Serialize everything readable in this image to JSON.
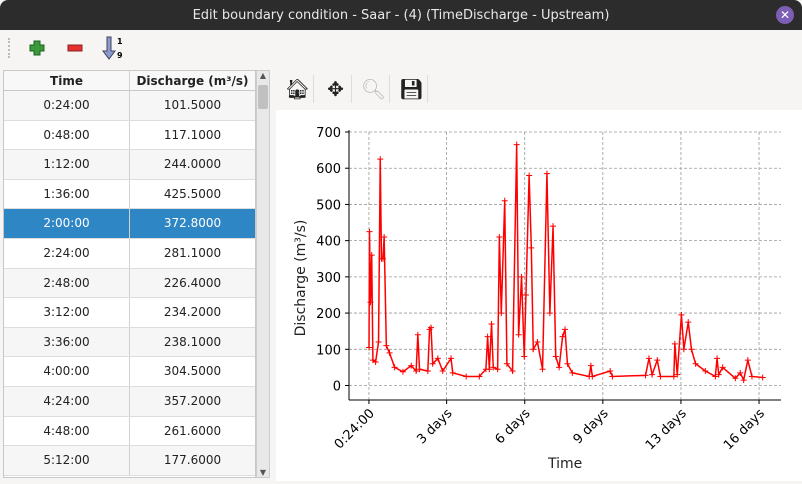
{
  "window": {
    "title": "Edit boundary condition - Saar -  (4) (TimeDischarge - Upstream)",
    "close_icon": "close-icon"
  },
  "toolbar": {
    "buttons": [
      {
        "icon": "add-row-icon"
      },
      {
        "icon": "remove-row-icon"
      },
      {
        "icon": "sort-ascending-icon",
        "glyph": "1 9"
      }
    ]
  },
  "table": {
    "columns": [
      "Time",
      "Discharge (m³/s)"
    ],
    "selected_index": 4,
    "rows": [
      [
        "0:24:00",
        "101.5000"
      ],
      [
        "0:48:00",
        "117.1000"
      ],
      [
        "1:12:00",
        "244.0000"
      ],
      [
        "1:36:00",
        "425.5000"
      ],
      [
        "2:00:00",
        "372.8000"
      ],
      [
        "2:24:00",
        "281.1000"
      ],
      [
        "2:48:00",
        "226.4000"
      ],
      [
        "3:12:00",
        "234.2000"
      ],
      [
        "3:36:00",
        "238.1000"
      ],
      [
        "4:00:00",
        "304.5000"
      ],
      [
        "4:24:00",
        "357.2000"
      ],
      [
        "4:48:00",
        "261.6000"
      ],
      [
        "5:12:00",
        "177.6000"
      ]
    ]
  },
  "chart_toolbar": {
    "buttons": [
      "home-icon",
      "pan-icon",
      "zoom-icon",
      "save-icon"
    ]
  },
  "chart_data": {
    "type": "line",
    "color": "#ff0000",
    "marker": "+",
    "grid": true,
    "xlabel": "Time",
    "ylabel": "Discharge (m³/s)",
    "xunit": "days",
    "xlim": [
      -0.8,
      16.9
    ],
    "ylim": [
      -40,
      700
    ],
    "xticks": [
      0.0167,
      3.2,
      6.4,
      9.6,
      12.8,
      16.0
    ],
    "xtick_labels": [
      "0:24:00",
      "3 days",
      "6 days",
      "9 days",
      "13 days",
      "16 days"
    ],
    "yticks": [
      0,
      100,
      200,
      300,
      400,
      500,
      600,
      700
    ],
    "x": [
      0.02,
      0.04,
      0.08,
      0.13,
      0.18,
      0.29,
      0.41,
      0.48,
      0.53,
      0.59,
      0.64,
      0.73,
      0.86,
      1.07,
      1.41,
      1.75,
      1.95,
      2.02,
      2.09,
      2.43,
      2.5,
      2.56,
      2.63,
      2.84,
      3.04,
      3.38,
      3.45,
      4.0,
      4.54,
      4.81,
      4.88,
      4.95,
      5.04,
      5.11,
      5.29,
      5.36,
      5.44,
      5.58,
      5.67,
      5.9,
      6.07,
      6.15,
      6.27,
      6.38,
      6.45,
      6.58,
      6.67,
      6.75,
      6.92,
      7.13,
      7.31,
      7.43,
      7.56,
      7.67,
      7.81,
      7.95,
      8.05,
      8.15,
      8.35,
      9.04,
      9.11,
      9.17,
      9.9,
      9.99,
      11.35,
      11.49,
      11.62,
      11.83,
      11.96,
      12.51,
      12.55,
      12.65,
      12.82,
      12.92,
      13.1,
      13.23,
      13.4,
      13.8,
      14.21,
      14.28,
      14.35,
      14.51,
      15.03,
      15.23,
      15.37,
      15.54,
      15.71,
      16.15
    ],
    "y": [
      105,
      425,
      230,
      360,
      70,
      65,
      120,
      625,
      350,
      350,
      410,
      110,
      90,
      50,
      38,
      55,
      40,
      140,
      45,
      40,
      155,
      160,
      60,
      75,
      40,
      75,
      35,
      25,
      25,
      45,
      135,
      45,
      170,
      50,
      45,
      410,
      200,
      510,
      60,
      40,
      665,
      140,
      300,
      80,
      250,
      580,
      380,
      100,
      120,
      45,
      585,
      200,
      440,
      80,
      50,
      135,
      155,
      60,
      35,
      25,
      55,
      25,
      40,
      25,
      28,
      75,
      30,
      70,
      25,
      25,
      115,
      30,
      195,
      100,
      175,
      100,
      60,
      40,
      25,
      75,
      30,
      50,
      20,
      35,
      15,
      70,
      25,
      22
    ]
  }
}
